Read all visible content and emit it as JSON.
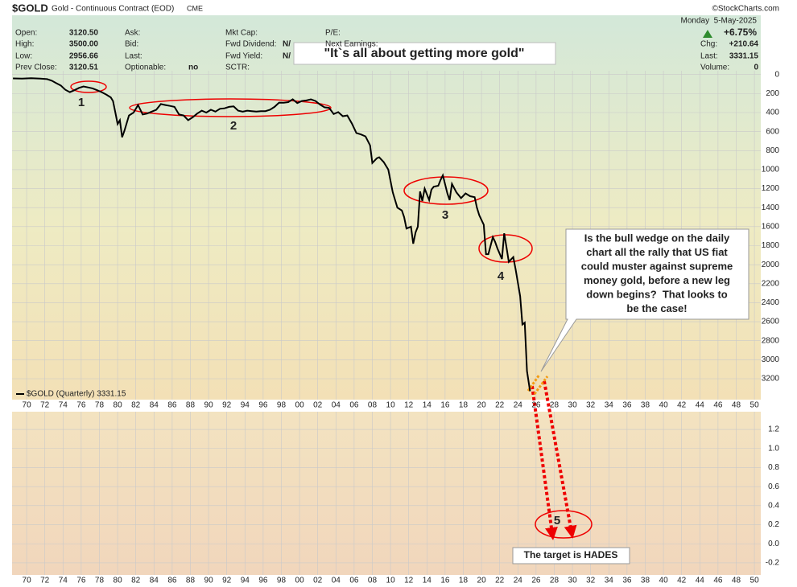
{
  "header": {
    "symbol": "$GOLD",
    "name": "Gold - Continuous Contract (EOD)",
    "exchange": "CME",
    "credit": "©StockCharts.com",
    "date": "Monday  5-May-2025",
    "change_pct": "+6.75%",
    "col1": [
      {
        "label": "Open:",
        "value": "3120.50"
      },
      {
        "label": "High:",
        "value": "3500.00"
      },
      {
        "label": "Low:",
        "value": "2956.66"
      },
      {
        "label": "Prev Close:",
        "value": "3120.51"
      }
    ],
    "col2": [
      {
        "label": "Ask:"
      },
      {
        "label": "Bid:"
      },
      {
        "label": "Last:"
      },
      {
        "label": "Optionable:",
        "value": "no"
      }
    ],
    "col3": [
      {
        "label": "Mkt Cap:"
      },
      {
        "label": "Fwd Dividend:",
        "value": "N/"
      },
      {
        "label": "Fwd Yield:",
        "value": "N/"
      },
      {
        "label": "SCTR:"
      }
    ],
    "col4": [
      {
        "label": "P/E:"
      },
      {
        "label": "Next Earnings:"
      }
    ],
    "right": [
      {
        "label": "Chg:",
        "value": "+210.64"
      },
      {
        "label": "Last:",
        "value": "3331.15"
      },
      {
        "label": "Volume:",
        "value": "0"
      }
    ]
  },
  "chart_data": [
    {
      "type": "line",
      "x": [
        1968.5,
        1969.5,
        1970.5,
        1971.5,
        1972.25,
        1972.75,
        1973.25,
        1973.75,
        1974.25,
        1974.75,
        1975.25,
        1975.75,
        1976.25,
        1976.75,
        1977.25,
        1977.75,
        1978.25,
        1978.75,
        1979.25,
        1979.5,
        1979.75,
        1980,
        1980.25,
        1980.5,
        1980.75,
        1981.25,
        1981.75,
        1982.25,
        1982.75,
        1983.25,
        1983.75,
        1984.25,
        1984.75,
        1985.25,
        1985.75,
        1986.25,
        1986.75,
        1987.25,
        1987.75,
        1988.25,
        1988.75,
        1989.25,
        1989.75,
        1990.25,
        1990.75,
        1991.25,
        1991.75,
        1992.25,
        1992.75,
        1993.25,
        1993.75,
        1994.25,
        1994.75,
        1995.25,
        1995.75,
        1996.25,
        1996.75,
        1997.25,
        1997.75,
        1998.25,
        1998.75,
        1999.25,
        1999.75,
        2000.25,
        2000.75,
        2001.25,
        2001.75,
        2002.25,
        2002.75,
        2003.25,
        2003.75,
        2004.25,
        2004.75,
        2005.25,
        2005.75,
        2006.25,
        2006.75,
        2007.25,
        2007.75,
        2008,
        2008.5,
        2008.75,
        2009.25,
        2009.75,
        2010.25,
        2010.75,
        2011.25,
        2011.5,
        2011.75,
        2012.25,
        2012.5,
        2012.75,
        2013,
        2013.25,
        2013.5,
        2013.75,
        2014.25,
        2014.5,
        2014.75,
        2015.25,
        2015.5,
        2015.75,
        2016.25,
        2016.5,
        2016.75,
        2017.25,
        2017.75,
        2018.25,
        2018.75,
        2019.25,
        2019.5,
        2019.75,
        2020.25,
        2020.5,
        2020.75,
        2021.25,
        2021.5,
        2021.75,
        2022.25,
        2022.5,
        2022.75,
        2023,
        2023.5,
        2023.75,
        2024.25,
        2024.5,
        2024.75,
        2025,
        2025.34
      ],
      "series": [
        {
          "name": "$GOLD (Quarterly) 3331.15",
          "color": "#000000",
          "values": [
            40,
            42,
            38,
            42,
            48,
            64,
            90,
            115,
            160,
            185,
            165,
            140,
            125,
            135,
            145,
            165,
            185,
            210,
            240,
            280,
            400,
            520,
            480,
            660,
            590,
            430,
            400,
            320,
            420,
            410,
            390,
            370,
            310,
            320,
            330,
            340,
            420,
            430,
            480,
            450,
            410,
            380,
            400,
            370,
            390,
            360,
            355,
            340,
            335,
            380,
            390,
            380,
            385,
            390,
            385,
            385,
            370,
            340,
            295,
            296,
            290,
            260,
            300,
            278,
            272,
            260,
            278,
            315,
            345,
            350,
            415,
            395,
            438,
            430,
            515,
            615,
            630,
            650,
            745,
            930,
            880,
            870,
            920,
            1000,
            1240,
            1400,
            1430,
            1500,
            1620,
            1600,
            1780,
            1660,
            1600,
            1230,
            1330,
            1200,
            1320,
            1210,
            1180,
            1170,
            1110,
            1060,
            1250,
            1320,
            1150,
            1240,
            1300,
            1250,
            1280,
            1290,
            1400,
            1480,
            1580,
            1890,
            1890,
            1710,
            1760,
            1830,
            1940,
            1670,
            1820,
            1970,
            1920,
            2050,
            2330,
            2630,
            2610,
            3120,
            3331.15
          ]
        }
      ],
      "xlim": [
        1968.4,
        2050.7
      ],
      "ylim": [
        3420,
        -40
      ],
      "grid": true,
      "xticks": [
        {
          "value": 1970,
          "label": "70"
        },
        {
          "value": 1972,
          "label": "72"
        },
        {
          "value": 1974,
          "label": "74"
        },
        {
          "value": 1976,
          "label": "76"
        },
        {
          "value": 1978,
          "label": "78"
        },
        {
          "value": 1980,
          "label": "80"
        },
        {
          "value": 1982,
          "label": "82"
        },
        {
          "value": 1984,
          "label": "84"
        },
        {
          "value": 1986,
          "label": "86"
        },
        {
          "value": 1988,
          "label": "88"
        },
        {
          "value": 1990,
          "label": "90"
        },
        {
          "value": 1992,
          "label": "92"
        },
        {
          "value": 1994,
          "label": "94"
        },
        {
          "value": 1996,
          "label": "96"
        },
        {
          "value": 1998,
          "label": "98"
        },
        {
          "value": 2000,
          "label": "00"
        },
        {
          "value": 2002,
          "label": "02"
        },
        {
          "value": 2004,
          "label": "04"
        },
        {
          "value": 2006,
          "label": "06"
        },
        {
          "value": 2008,
          "label": "08"
        },
        {
          "value": 2010,
          "label": "10"
        },
        {
          "value": 2012,
          "label": "12"
        },
        {
          "value": 2014,
          "label": "14"
        },
        {
          "value": 2016,
          "label": "16"
        },
        {
          "value": 2018,
          "label": "18"
        },
        {
          "value": 2020,
          "label": "20"
        },
        {
          "value": 2022,
          "label": "22"
        },
        {
          "value": 2024,
          "label": "24"
        },
        {
          "value": 2026,
          "label": "26"
        },
        {
          "value": 2028,
          "label": "28"
        },
        {
          "value": 2030,
          "label": "30"
        },
        {
          "value": 2032,
          "label": "32"
        },
        {
          "value": 2034,
          "label": "34"
        },
        {
          "value": 2036,
          "label": "36"
        },
        {
          "value": 2038,
          "label": "38"
        },
        {
          "value": 2040,
          "label": "40"
        },
        {
          "value": 2042,
          "label": "42"
        },
        {
          "value": 2044,
          "label": "44"
        },
        {
          "value": 2046,
          "label": "46"
        },
        {
          "value": 2048,
          "label": "48"
        },
        {
          "value": 2050,
          "label": "50"
        }
      ],
      "yticks": [
        0,
        200,
        400,
        600,
        800,
        1000,
        1200,
        1400,
        1600,
        1800,
        2000,
        2200,
        2400,
        2600,
        2800,
        3000,
        3200
      ],
      "annotations": {
        "quote": "\"It`s all about getting more gold\"",
        "labels": [
          "1",
          "2",
          "3",
          "4",
          "5"
        ],
        "callout": [
          "Is the bull wedge on the daily",
          "chart all the rally that US fiat",
          "could muster against supreme",
          "money gold, before a new leg",
          "down begins?  That looks to",
          "be the case!"
        ],
        "target": "The target is HADES"
      }
    },
    {
      "type": "line",
      "xlim": [
        1968.4,
        2050.7
      ],
      "ylim": [
        -0.327,
        1.386
      ],
      "grid": true,
      "xticks": [
        {
          "value": 1970,
          "label": "70"
        },
        {
          "value": 1972,
          "label": "72"
        },
        {
          "value": 1974,
          "label": "74"
        },
        {
          "value": 1976,
          "label": "76"
        },
        {
          "value": 1978,
          "label": "78"
        },
        {
          "value": 1980,
          "label": "80"
        },
        {
          "value": 1982,
          "label": "82"
        },
        {
          "value": 1984,
          "label": "84"
        },
        {
          "value": 1986,
          "label": "86"
        },
        {
          "value": 1988,
          "label": "88"
        },
        {
          "value": 1990,
          "label": "90"
        },
        {
          "value": 1992,
          "label": "92"
        },
        {
          "value": 1994,
          "label": "94"
        },
        {
          "value": 1996,
          "label": "96"
        },
        {
          "value": 1998,
          "label": "98"
        },
        {
          "value": 2000,
          "label": "00"
        },
        {
          "value": 2002,
          "label": "02"
        },
        {
          "value": 2004,
          "label": "04"
        },
        {
          "value": 2006,
          "label": "06"
        },
        {
          "value": 2008,
          "label": "08"
        },
        {
          "value": 2010,
          "label": "10"
        },
        {
          "value": 2012,
          "label": "12"
        },
        {
          "value": 2014,
          "label": "14"
        },
        {
          "value": 2016,
          "label": "16"
        },
        {
          "value": 2018,
          "label": "18"
        },
        {
          "value": 2020,
          "label": "20"
        },
        {
          "value": 2022,
          "label": "22"
        },
        {
          "value": 2024,
          "label": "24"
        },
        {
          "value": 2026,
          "label": "26"
        },
        {
          "value": 2028,
          "label": "28"
        },
        {
          "value": 2030,
          "label": "30"
        },
        {
          "value": 2032,
          "label": "32"
        },
        {
          "value": 2034,
          "label": "34"
        },
        {
          "value": 2036,
          "label": "36"
        },
        {
          "value": 2038,
          "label": "38"
        },
        {
          "value": 2040,
          "label": "40"
        },
        {
          "value": 2042,
          "label": "42"
        },
        {
          "value": 2044,
          "label": "44"
        },
        {
          "value": 2046,
          "label": "46"
        },
        {
          "value": 2048,
          "label": "48"
        },
        {
          "value": 2050,
          "label": "50"
        }
      ],
      "yticks": [
        -0.2,
        {
          "value": 0,
          "label": "0.0"
        },
        0.2,
        0.4,
        0.6,
        0.8,
        {
          "value": 1,
          "label": "1.0"
        },
        1.2
      ]
    }
  ]
}
